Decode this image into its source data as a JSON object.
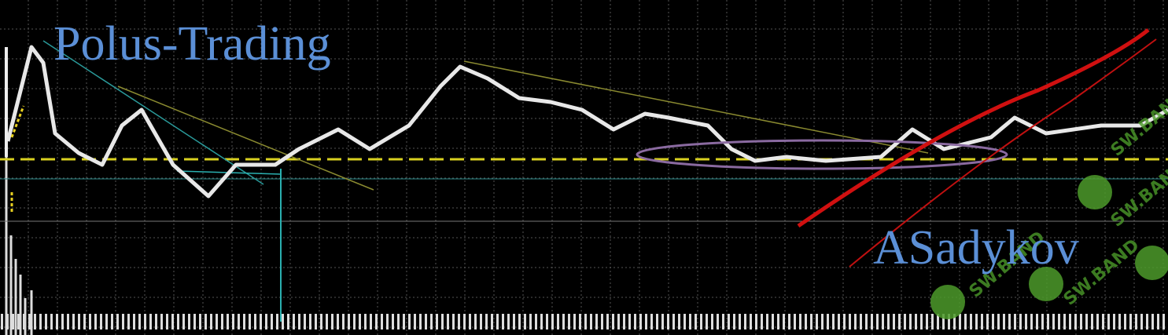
{
  "header": {
    "title": "Polus-Trading"
  },
  "author": "ASadykov",
  "watermark": "SW.BAND"
}
